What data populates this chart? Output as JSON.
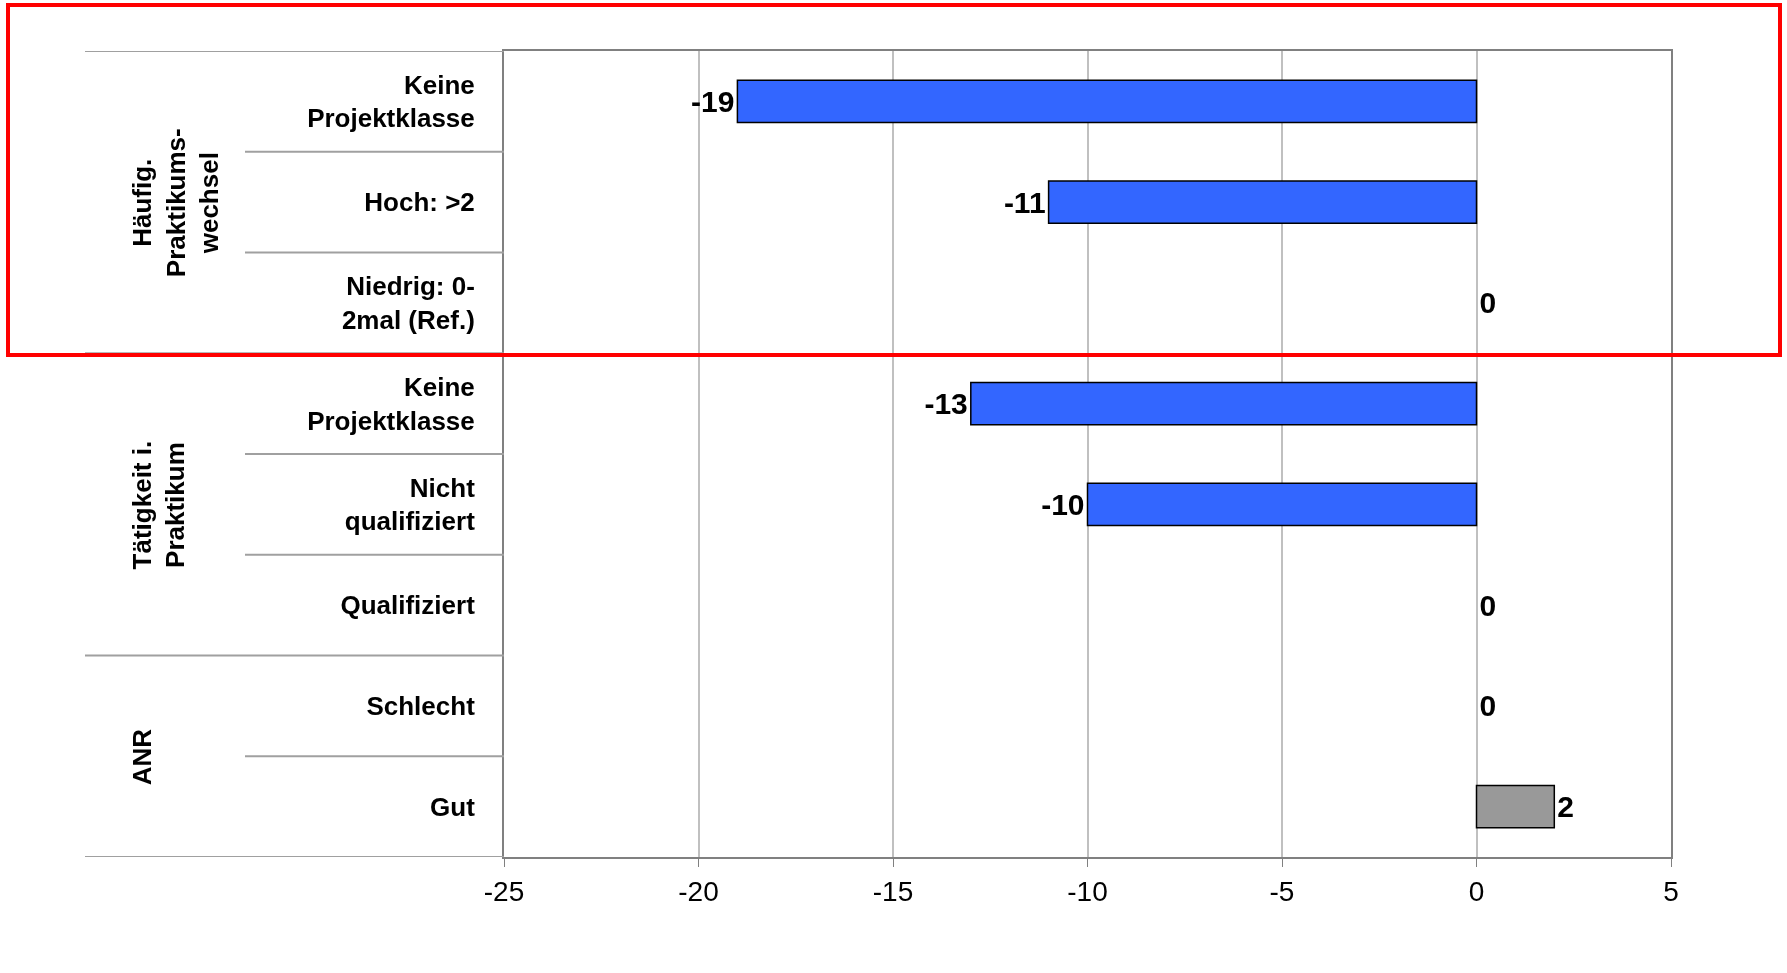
{
  "chart_data": {
    "type": "bar",
    "orientation": "horizontal",
    "categories": [
      "Keine\nProjektklasse",
      "Hoch: >2",
      "Niedrig: 0-\n2mal (Ref.)",
      "Keine\nProjektklasse",
      "Nicht\nqualifiziert",
      "Qualifiziert",
      "Schlecht",
      "Gut"
    ],
    "values": [
      -19,
      -11,
      0,
      -13,
      -10,
      0,
      0,
      2
    ],
    "colors": [
      "#3366ff",
      "#3366ff",
      "#3366ff",
      "#3366ff",
      "#3366ff",
      "#3366ff",
      "#3366ff",
      "#999999"
    ],
    "data_labels": true,
    "xlim": [
      -25,
      5
    ],
    "xticks": [
      -25,
      -20,
      -15,
      -10,
      -5,
      0,
      5
    ],
    "grid": "x",
    "annotations": [
      "Häufig.\nPraktikums-\nwechsel",
      "Tätigkeit i.\nPraktikum",
      "ANR"
    ]
  }
}
